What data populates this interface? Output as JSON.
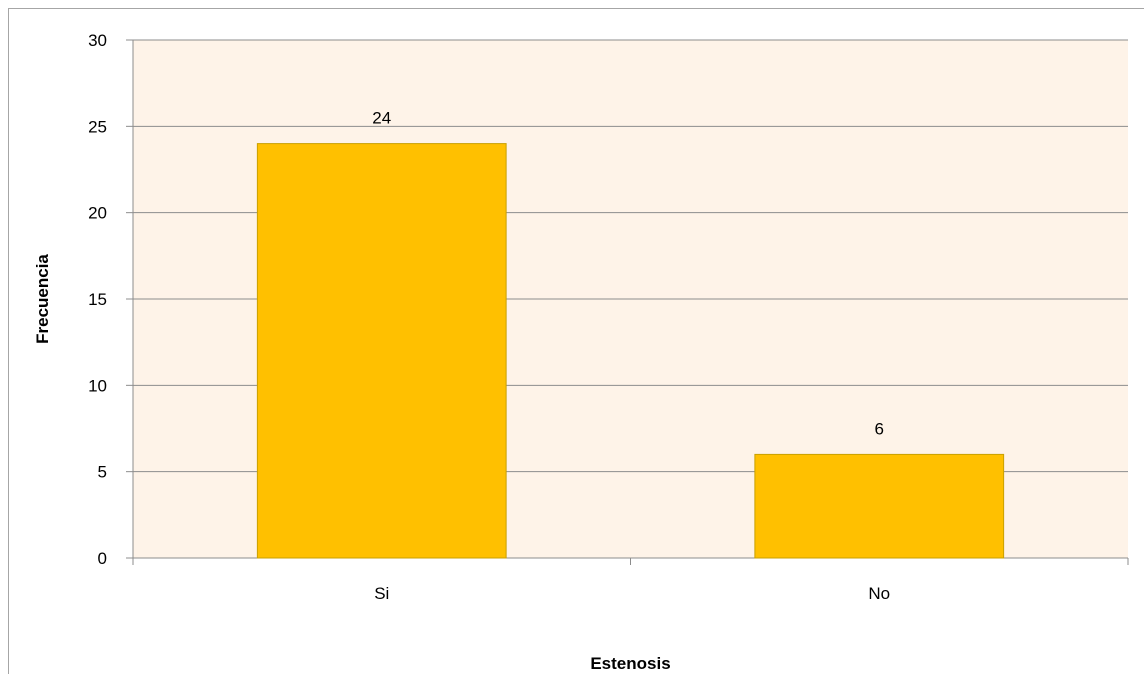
{
  "chart_data": {
    "type": "bar",
    "categories": [
      "Si",
      "No"
    ],
    "values": [
      24,
      6
    ],
    "xlabel": "Estenosis",
    "ylabel": "Frecuencia",
    "ylim": [
      0,
      30
    ],
    "yticks": [
      0,
      5,
      10,
      15,
      20,
      25,
      30
    ],
    "grid": true,
    "legend": "none",
    "colors": {
      "bar_fill": "#FFC000",
      "bar_stroke": "#C9A000",
      "plot_background": "#FEF3E8",
      "gridline": "#8c8c8c"
    }
  }
}
